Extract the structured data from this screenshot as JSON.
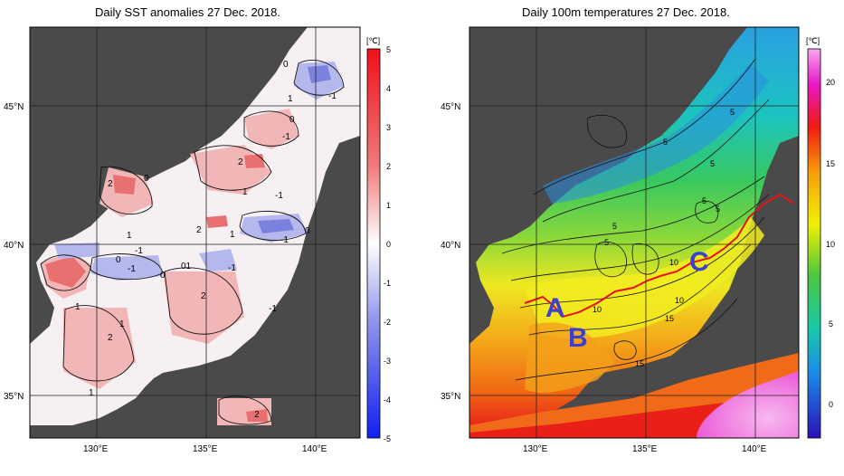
{
  "left_panel": {
    "title": "Daily SST anomalies 27 Dec. 2018.",
    "unit": "[℃]",
    "colorbar_ticks": [
      "5",
      "4",
      "3",
      "2",
      "1",
      "0",
      "-1",
      "-2",
      "-3",
      "-4",
      "-5"
    ],
    "contour_labels": [
      "0",
      "1",
      "-1",
      "0",
      "-1",
      "2",
      "1",
      "0",
      "2",
      "-1",
      "1",
      "2",
      "1",
      "-1",
      "0",
      "-1",
      "-1",
      "-1",
      "0",
      "01",
      "0",
      "2",
      "1",
      "-1",
      "1",
      "2",
      "1",
      "2"
    ],
    "colors": {
      "land": "#4a4a4a",
      "warm": "#e65a5a",
      "cool": "#5a66dc",
      "neutral": "#f4f4f8"
    }
  },
  "right_panel": {
    "title": "Daily 100m temperatures 27 Dec. 2018.",
    "unit": "[℃]",
    "colorbar_ticks": [
      "20",
      "15",
      "10",
      "5",
      "0"
    ],
    "contour_labels": [
      "5",
      "5",
      "5",
      "5",
      "5",
      "5",
      "5",
      "10",
      "15",
      "10",
      "15",
      "10",
      "15"
    ],
    "current_labels": [
      "A",
      "B",
      "C"
    ],
    "colors": {
      "land": "#4a4a4a",
      "label": "#3d3fd0",
      "front": "#e8121a"
    }
  },
  "axes": {
    "lat_labels": [
      "45°N",
      "40°N",
      "35°N"
    ],
    "lon_labels": [
      "130°E",
      "135°E",
      "140°E"
    ]
  }
}
